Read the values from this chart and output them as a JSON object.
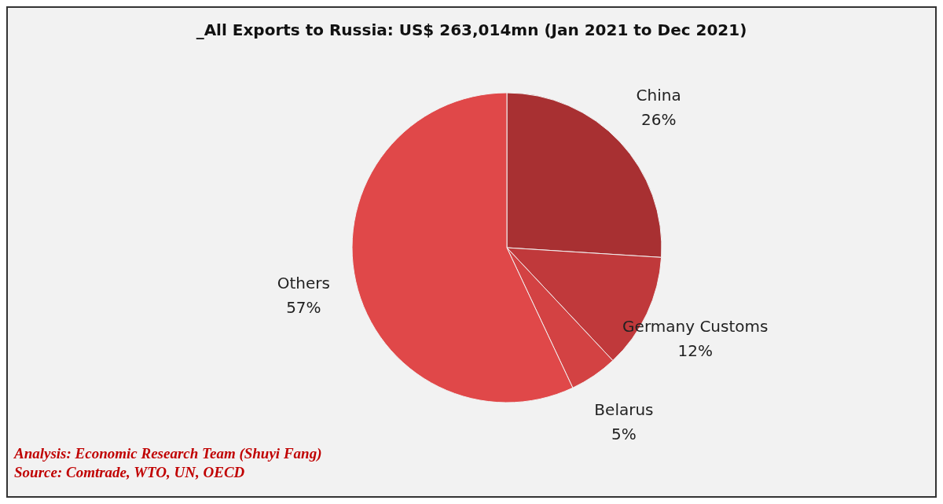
{
  "chart_data": {
    "type": "pie",
    "title": "_All Exports to Russia: US$ 263,014mn  (Jan 2021  to Dec 2021)",
    "categories": [
      "China",
      "Germany Customs",
      "Belarus",
      "Others"
    ],
    "values": [
      26,
      12,
      5,
      57
    ],
    "colors": [
      "#a83032",
      "#c0393b",
      "#d34243",
      "#e04849"
    ],
    "value_labels": [
      "26%",
      "12%",
      "5%",
      "57%"
    ],
    "legend": false,
    "annotations": [
      "Analysis: Economic Research Team (Shuyi Fang)",
      "Source: Comtrade, WTO, UN, OECD"
    ]
  }
}
